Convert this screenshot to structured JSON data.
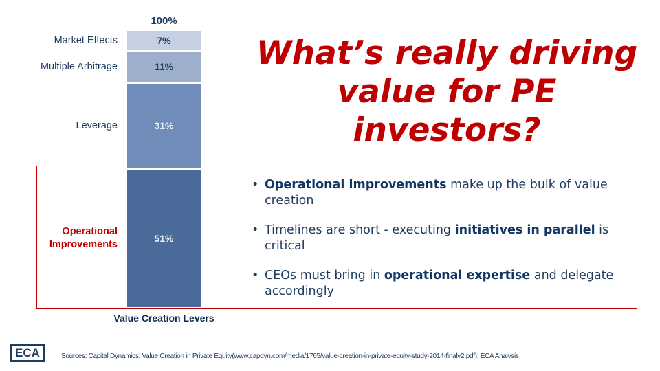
{
  "chart_data": {
    "type": "bar",
    "stacked": true,
    "total_label": "100%",
    "xlabel": "Value Creation Levers",
    "categories": [
      "Market Effects",
      "Multiple Arbitrage",
      "Leverage",
      "Operational Improvements"
    ],
    "values": [
      7,
      11,
      31,
      51
    ],
    "value_labels": [
      "7%",
      "11%",
      "31%",
      "51%"
    ],
    "colors": [
      "#C5D0E2",
      "#9DAFCB",
      "#6F8DB8",
      "#4A6B9A"
    ],
    "label_colors": [
      "#1F3B5E",
      "#1F3B5E",
      "#EEF2F8",
      "#EEF2F8"
    ],
    "highlight": "Operational Improvements"
  },
  "title": "What’s really driving value for PE investors?",
  "bullets": [
    {
      "bold": "Operational improvements",
      "pre": "",
      "post": " make up the bulk of value creation"
    },
    {
      "pre": "Timelines are short - executing ",
      "bold": "initiatives in parallel",
      "post": " is critical"
    },
    {
      "pre": "CEOs must bring in ",
      "bold": "operational expertise",
      "post": " and delegate accordingly"
    }
  ],
  "logo": "ECA",
  "source": "Sources: Capital Dynamics: Value Creation in Private Equity(www.capdyn.com/media/1765/value-creation-in-private-equity-study-2014-finalv2.pdf); ECA Analysis",
  "colors": {
    "accent": "#C00000",
    "navy": "#1F3B5E"
  }
}
